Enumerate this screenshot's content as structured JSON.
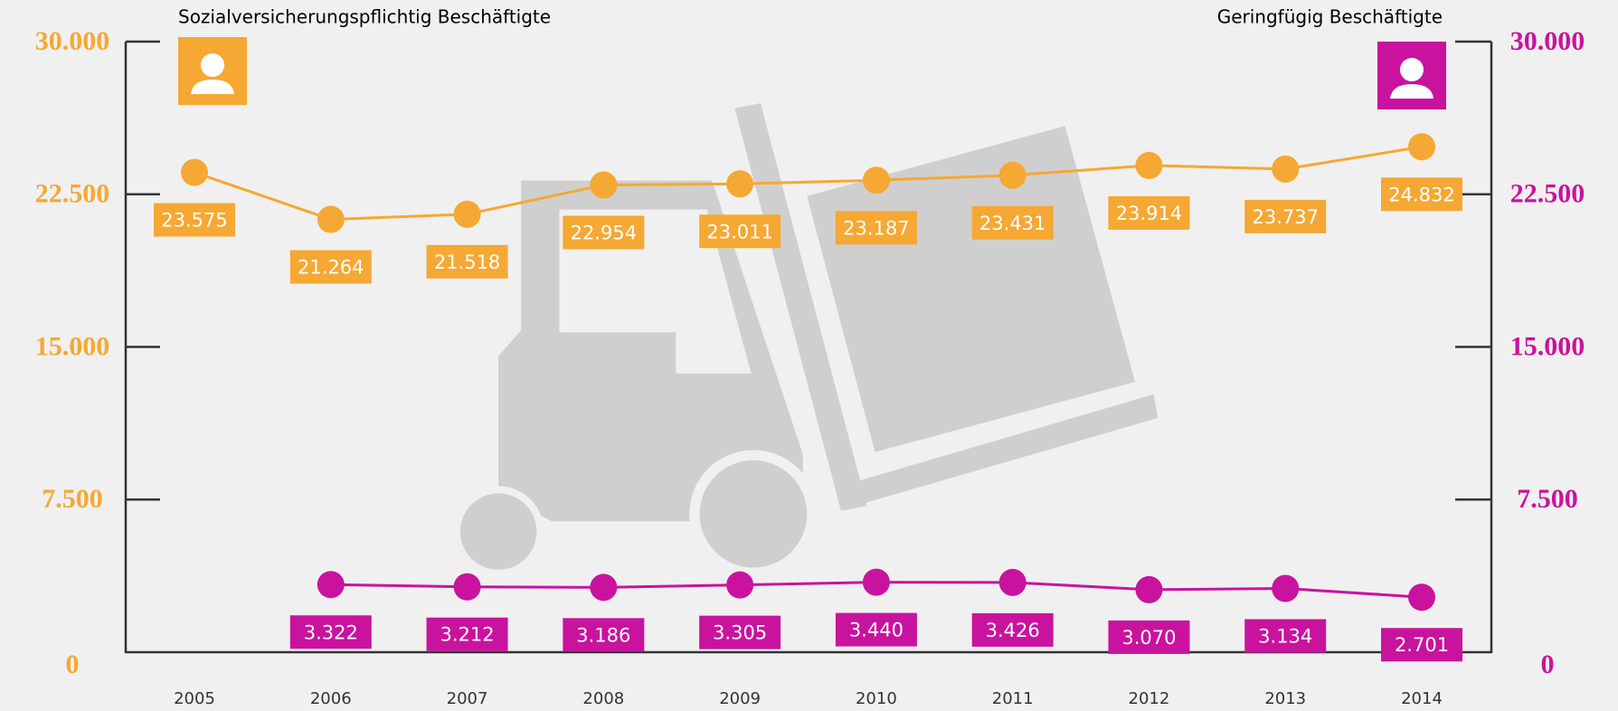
{
  "chart_data": {
    "type": "line",
    "categories": [
      "2005",
      "2006",
      "2007",
      "2008",
      "2009",
      "2010",
      "2011",
      "2012",
      "2013",
      "2014"
    ],
    "series": [
      {
        "name": "Sozialversicherungspflichtig Beschäftigte",
        "color": "#f5a833",
        "values": [
          23575,
          21264,
          21518,
          22954,
          23011,
          23187,
          23431,
          23914,
          23737,
          24832
        ],
        "value_labels": [
          "23.575",
          "21.264",
          "21.518",
          "22.954",
          "23.011",
          "23.187",
          "23.431",
          "23.914",
          "23.737",
          "24.832"
        ]
      },
      {
        "name": "Geringfügig Beschäftigte",
        "color": "#c9139e",
        "axis": "y2",
        "values": [
          null,
          3322,
          3212,
          3186,
          3305,
          3440,
          3426,
          3070,
          3134,
          2701
        ],
        "value_labels": [
          null,
          "3.322",
          "3.212",
          "3.186",
          "3.305",
          "3.440",
          "3.426",
          "3.070",
          "3.134",
          "2.701"
        ]
      }
    ],
    "ylim": [
      0,
      30000
    ],
    "yticks": [
      0,
      {
        "value": 7500,
        "label": "7.500"
      },
      {
        "value": 15000,
        "label": "15.000"
      },
      {
        "value": 22500,
        "label": "22.500"
      },
      {
        "value": 30000,
        "label": "30.000"
      }
    ],
    "y2lim": [
      0,
      30000
    ],
    "y2ticks": [
      0,
      {
        "value": 7500,
        "label": "7.500"
      },
      {
        "value": 15000,
        "label": "15.000"
      },
      {
        "value": 22500,
        "label": "22.500"
      },
      {
        "value": 30000,
        "label": "30.000"
      }
    ],
    "grid": false
  }
}
